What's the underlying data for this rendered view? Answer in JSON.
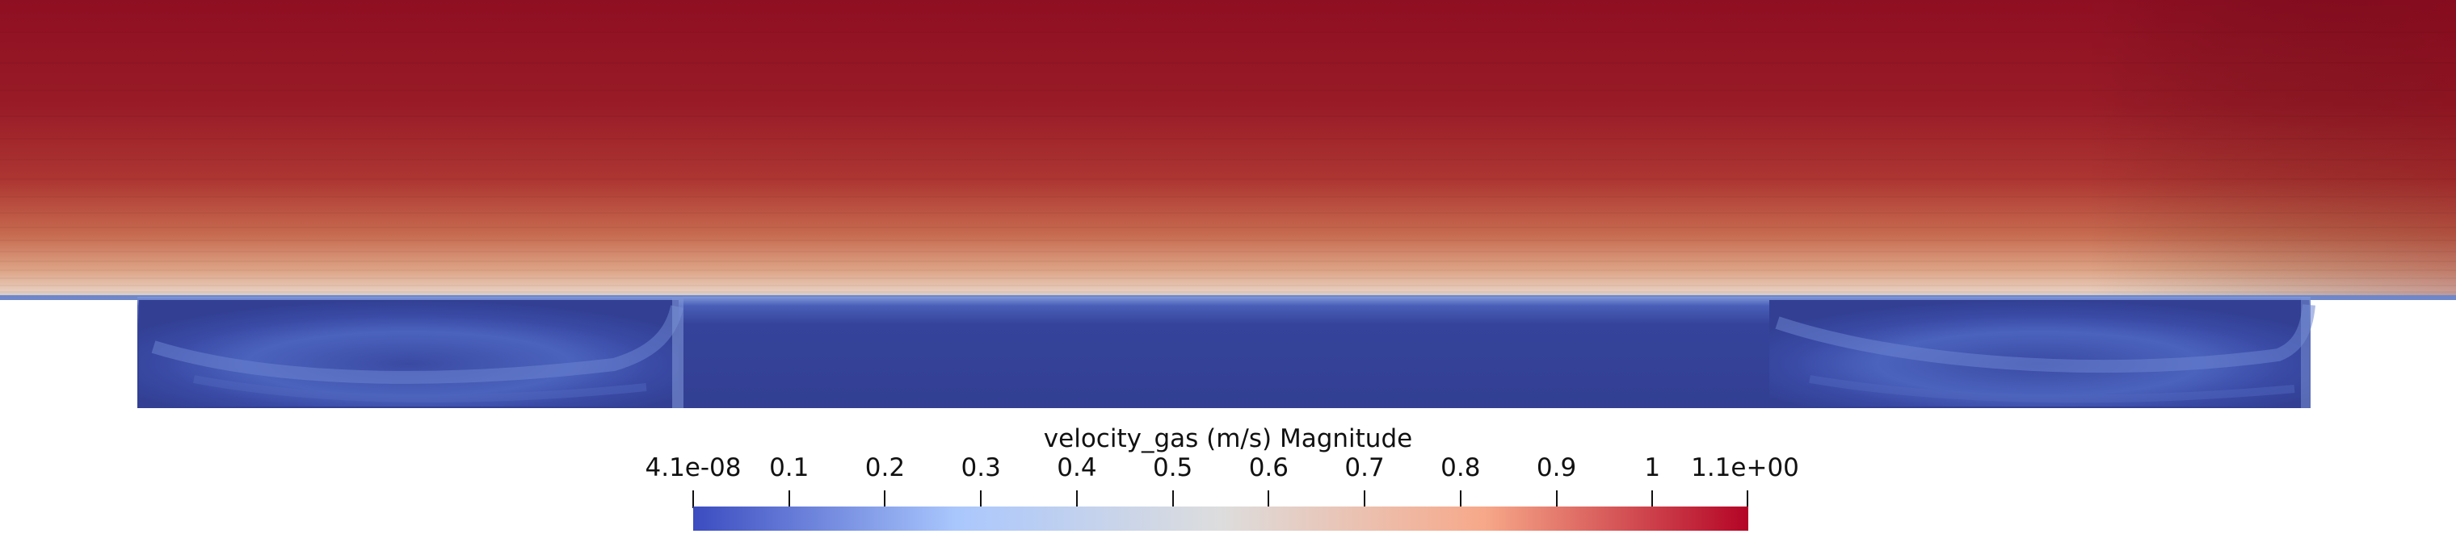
{
  "colorbar": {
    "title": "velocity_gas (m/s) Magnitude",
    "min_label": "4.1e-08",
    "max_label": "1.1e+00",
    "min_value": 4.1e-08,
    "max_value": 1.1,
    "ticks": [
      {
        "label": "0.1",
        "value": 0.1
      },
      {
        "label": "0.2",
        "value": 0.2
      },
      {
        "label": "0.3",
        "value": 0.3
      },
      {
        "label": "0.4",
        "value": 0.4
      },
      {
        "label": "0.5",
        "value": 0.5
      },
      {
        "label": "0.6",
        "value": 0.6
      },
      {
        "label": "0.7",
        "value": 0.7
      },
      {
        "label": "0.8",
        "value": 0.8
      },
      {
        "label": "0.9",
        "value": 0.9
      },
      {
        "label": "1",
        "value": 1.0
      }
    ],
    "colormap": [
      "#3b4cc0",
      "#aac7fd",
      "#dddddd",
      "#f7a889",
      "#b40426"
    ]
  },
  "field": {
    "upper_region_color_top": "#8f0f22",
    "upper_region_color_bottom": "#e8c9b8",
    "cavity_color": "#323f93"
  }
}
